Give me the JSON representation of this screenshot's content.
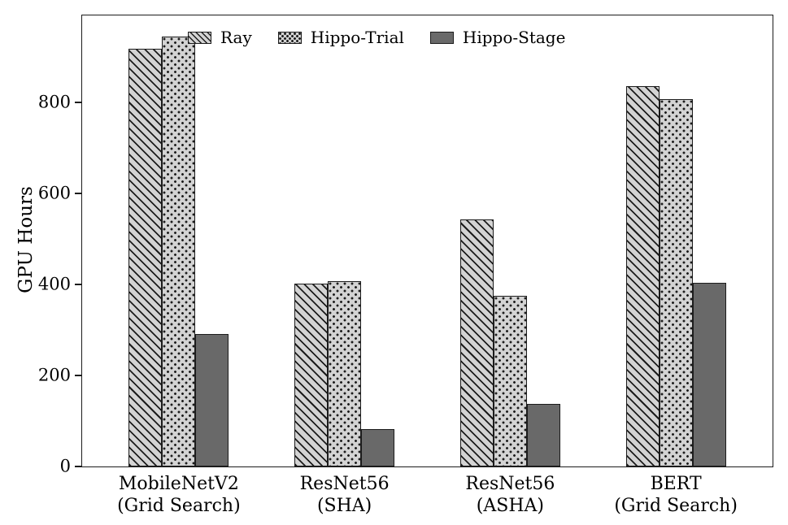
{
  "chart_data": {
    "type": "bar",
    "title": "",
    "xlabel": "",
    "ylabel": "GPU Hours",
    "ylim": [
      0,
      990
    ],
    "yticks": [
      0,
      200,
      400,
      600,
      800
    ],
    "grid": false,
    "legend": {
      "position": "upper-center-inside",
      "frame": false,
      "entries": [
        "Ray",
        "Hippo-Trial",
        "Hippo-Stage"
      ]
    },
    "categories": [
      "MobileNetV2 (Grid Search)",
      "ResNet56 (SHA)",
      "ResNet56 (ASHA)",
      "BERT (Grid Search)"
    ],
    "category_lines": [
      [
        "MobileNetV2",
        "(Grid Search)"
      ],
      [
        "ResNet56",
        "(SHA)"
      ],
      [
        "ResNet56",
        "(ASHA)"
      ],
      [
        "BERT",
        "(Grid Search)"
      ]
    ],
    "series": [
      {
        "name": "Ray",
        "style": "diagonal-hatch",
        "fill": "#d3d3d3",
        "hatch_color": "#1c1c1c",
        "values": [
          917,
          402,
          543,
          835
        ]
      },
      {
        "name": "Hippo-Trial",
        "style": "dot-hatch",
        "fill": "#d3d3d3",
        "hatch_color": "#1c1c1c",
        "values": [
          944,
          406,
          374,
          807
        ]
      },
      {
        "name": "Hippo-Stage",
        "style": "solid",
        "fill": "#696969",
        "values": [
          290,
          82,
          138,
          403
        ]
      }
    ],
    "colors": {
      "edge": "#1c1c1c",
      "text": "#000000",
      "background": "#ffffff"
    }
  }
}
